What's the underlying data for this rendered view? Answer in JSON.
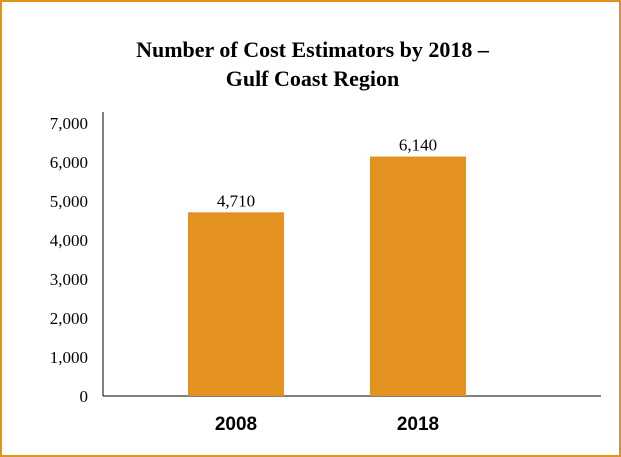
{
  "chart_data": {
    "type": "bar",
    "title_lines": [
      "Number of Cost Estimators by 2018 –",
      "Gulf Coast Region"
    ],
    "categories": [
      "2008",
      "2018"
    ],
    "values": [
      4710,
      6140
    ],
    "data_labels": [
      "4,710",
      "6,140"
    ],
    "y_ticks": [
      "0",
      "1,000",
      "2,000",
      "3,000",
      "4,000",
      "5,000",
      "6,000",
      "7,000"
    ],
    "ylim": [
      0,
      7000
    ],
    "grid": false,
    "bar_color": "#e3921f",
    "border_color": "#e3921f"
  }
}
